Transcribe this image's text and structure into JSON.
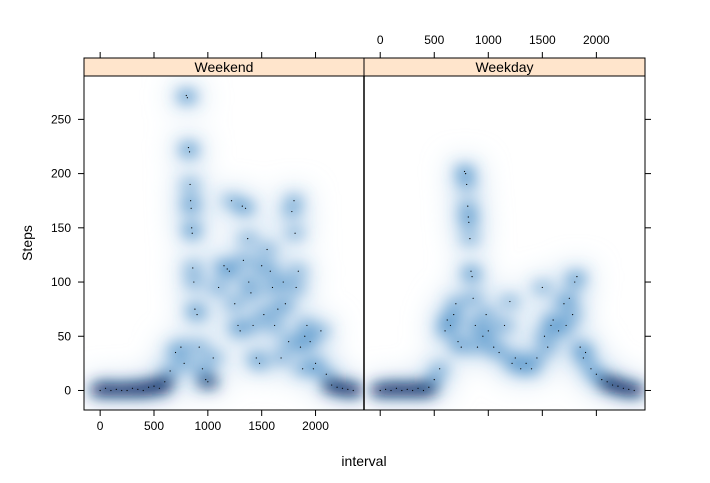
{
  "chart_data": {
    "type": "smoothscatter",
    "xlabel": "interval",
    "ylabel": "Steps",
    "xlim": [
      -150,
      2450
    ],
    "ylim": [
      -18,
      290
    ],
    "x_ticks": [
      0,
      500,
      1000,
      1500,
      2000
    ],
    "y_ticks": [
      0,
      50,
      100,
      150,
      200,
      250
    ],
    "colors": {
      "strip": "#ffe5cc",
      "density_dark": "#08306b",
      "density_mid": "#4a8fc8",
      "density_light": "#c6dbef",
      "frame": "#000000"
    },
    "panels": [
      {
        "name": "Weekend",
        "points": [
          [
            0,
            0
          ],
          [
            50,
            2
          ],
          [
            100,
            0
          ],
          [
            150,
            1
          ],
          [
            200,
            0
          ],
          [
            250,
            0
          ],
          [
            300,
            2
          ],
          [
            350,
            1
          ],
          [
            400,
            0
          ],
          [
            450,
            3
          ],
          [
            500,
            4
          ],
          [
            550,
            2
          ],
          [
            600,
            8
          ],
          [
            650,
            18
          ],
          [
            700,
            35
          ],
          [
            750,
            40
          ],
          [
            780,
            25
          ],
          [
            800,
            272
          ],
          [
            810,
            270
          ],
          [
            820,
            224
          ],
          [
            830,
            220
          ],
          [
            835,
            190
          ],
          [
            840,
            175
          ],
          [
            845,
            168
          ],
          [
            850,
            150
          ],
          [
            855,
            145
          ],
          [
            860,
            113
          ],
          [
            870,
            100
          ],
          [
            880,
            75
          ],
          [
            900,
            70
          ],
          [
            920,
            40
          ],
          [
            950,
            20
          ],
          [
            980,
            10
          ],
          [
            1000,
            8
          ],
          [
            1050,
            30
          ],
          [
            1100,
            95
          ],
          [
            1150,
            115
          ],
          [
            1180,
            112
          ],
          [
            1200,
            110
          ],
          [
            1220,
            175
          ],
          [
            1250,
            80
          ],
          [
            1280,
            60
          ],
          [
            1300,
            55
          ],
          [
            1320,
            170
          ],
          [
            1330,
            120
          ],
          [
            1350,
            168
          ],
          [
            1370,
            140
          ],
          [
            1380,
            100
          ],
          [
            1400,
            90
          ],
          [
            1420,
            60
          ],
          [
            1450,
            30
          ],
          [
            1480,
            25
          ],
          [
            1500,
            115
          ],
          [
            1520,
            70
          ],
          [
            1550,
            130
          ],
          [
            1580,
            110
          ],
          [
            1600,
            95
          ],
          [
            1620,
            60
          ],
          [
            1650,
            75
          ],
          [
            1680,
            30
          ],
          [
            1700,
            100
          ],
          [
            1720,
            80
          ],
          [
            1750,
            45
          ],
          [
            1780,
            165
          ],
          [
            1800,
            175
          ],
          [
            1810,
            145
          ],
          [
            1820,
            95
          ],
          [
            1840,
            110
          ],
          [
            1860,
            40
          ],
          [
            1880,
            20
          ],
          [
            1900,
            50
          ],
          [
            1920,
            60
          ],
          [
            1950,
            45
          ],
          [
            1980,
            20
          ],
          [
            2000,
            25
          ],
          [
            2050,
            55
          ],
          [
            2100,
            15
          ],
          [
            2150,
            5
          ],
          [
            2200,
            3
          ],
          [
            2250,
            2
          ],
          [
            2300,
            1
          ],
          [
            2350,
            0
          ]
        ]
      },
      {
        "name": "Weekday",
        "points": [
          [
            0,
            0
          ],
          [
            50,
            1
          ],
          [
            100,
            0
          ],
          [
            150,
            2
          ],
          [
            200,
            0
          ],
          [
            250,
            1
          ],
          [
            300,
            0
          ],
          [
            350,
            2
          ],
          [
            400,
            0
          ],
          [
            450,
            3
          ],
          [
            500,
            10
          ],
          [
            550,
            20
          ],
          [
            600,
            55
          ],
          [
            620,
            65
          ],
          [
            650,
            60
          ],
          [
            680,
            70
          ],
          [
            700,
            80
          ],
          [
            720,
            45
          ],
          [
            750,
            40
          ],
          [
            780,
            202
          ],
          [
            790,
            200
          ],
          [
            800,
            190
          ],
          [
            810,
            170
          ],
          [
            815,
            160
          ],
          [
            820,
            155
          ],
          [
            830,
            140
          ],
          [
            840,
            110
          ],
          [
            850,
            105
          ],
          [
            860,
            85
          ],
          [
            880,
            60
          ],
          [
            900,
            40
          ],
          [
            950,
            50
          ],
          [
            980,
            70
          ],
          [
            1000,
            55
          ],
          [
            1050,
            40
          ],
          [
            1100,
            35
          ],
          [
            1150,
            60
          ],
          [
            1200,
            82
          ],
          [
            1220,
            25
          ],
          [
            1250,
            30
          ],
          [
            1300,
            20
          ],
          [
            1350,
            25
          ],
          [
            1400,
            20
          ],
          [
            1450,
            30
          ],
          [
            1500,
            95
          ],
          [
            1520,
            50
          ],
          [
            1550,
            40
          ],
          [
            1580,
            60
          ],
          [
            1600,
            65
          ],
          [
            1650,
            55
          ],
          [
            1700,
            80
          ],
          [
            1720,
            60
          ],
          [
            1750,
            85
          ],
          [
            1780,
            70
          ],
          [
            1800,
            100
          ],
          [
            1820,
            105
          ],
          [
            1850,
            40
          ],
          [
            1880,
            30
          ],
          [
            1900,
            35
          ],
          [
            1950,
            20
          ],
          [
            2000,
            15
          ],
          [
            2050,
            10
          ],
          [
            2100,
            8
          ],
          [
            2150,
            5
          ],
          [
            2200,
            4
          ],
          [
            2250,
            2
          ],
          [
            2300,
            1
          ],
          [
            2350,
            0
          ]
        ]
      }
    ]
  }
}
